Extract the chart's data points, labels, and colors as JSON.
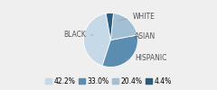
{
  "labels": [
    "WHITE",
    "HISPANIC",
    "BLACK",
    "ASIAN"
  ],
  "values": [
    42.2,
    33.0,
    20.4,
    4.4
  ],
  "colors": [
    "#c5d9e8",
    "#5b8db0",
    "#a2bfd4",
    "#2b5c7d"
  ],
  "legend_labels": [
    "42.2%",
    "33.0%",
    "20.4%",
    "4.4%"
  ],
  "legend_colors": [
    "#c5d9e8",
    "#5b8db0",
    "#a2bfd4",
    "#2b5c7d"
  ],
  "startangle": 100,
  "background_color": "#efefef",
  "label_fontsize": 5.5,
  "legend_fontsize": 5.5
}
